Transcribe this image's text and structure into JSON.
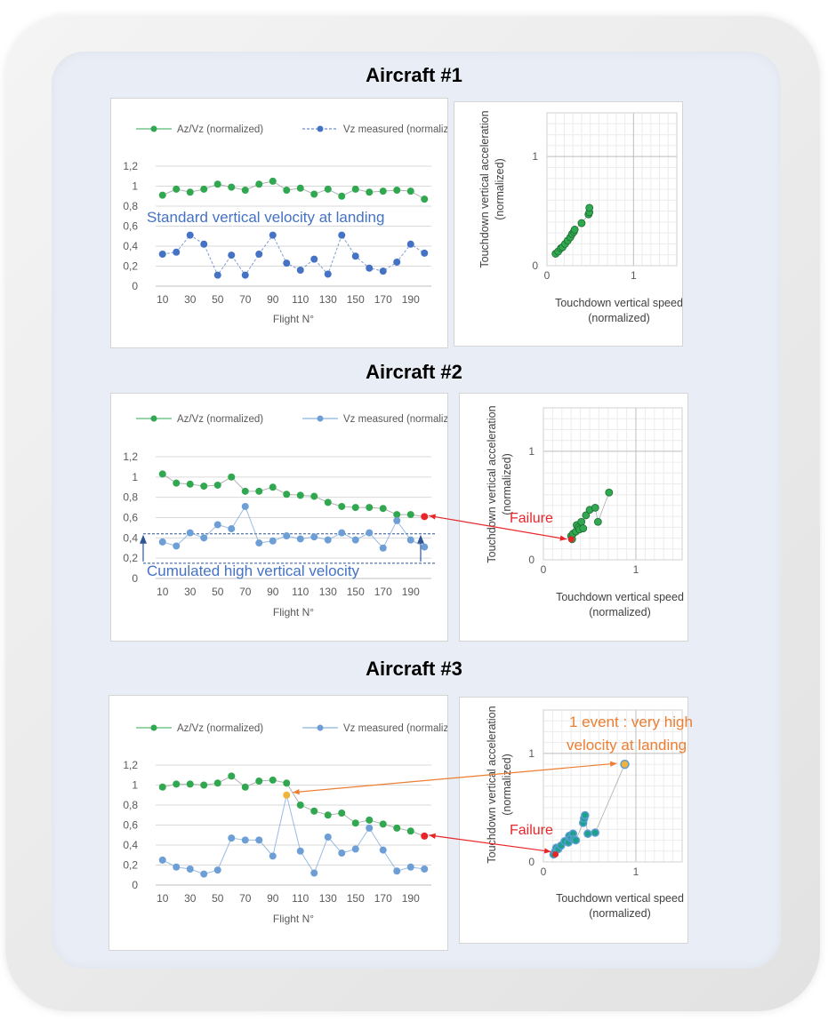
{
  "sections": [
    {
      "title": "Aircraft #1"
    },
    {
      "title": "Aircraft #2"
    },
    {
      "title": "Aircraft #3"
    }
  ],
  "colors": {
    "az_series": "#2fa84f",
    "vz_series_1": "#4472c4",
    "vz_series_2": "#6d9fd6",
    "failure_point": "#e8262a",
    "event_point": "#f0b43c",
    "failure_text": "#e8262a",
    "event_text": "#ed7d31",
    "annotation_text": "#4472c4"
  },
  "chart_data": [
    {
      "type": "line",
      "legend": [
        "Az/Vz (normalized)",
        "Vz measured (normalized)"
      ],
      "xlabel": "Flight N°",
      "x_ticks": [
        "10",
        "30",
        "50",
        "70",
        "90",
        "110",
        "130",
        "150",
        "170",
        "190"
      ],
      "y_ticks": [
        "0",
        "0,2",
        "0,4",
        "0,6",
        "0,8",
        "1",
        "1,2"
      ],
      "ylim": [
        0,
        1.2
      ],
      "x": [
        10,
        20,
        30,
        40,
        50,
        60,
        70,
        80,
        90,
        100,
        110,
        120,
        130,
        140,
        150,
        160,
        170,
        180,
        190,
        200
      ],
      "series": [
        {
          "name": "Az/Vz (normalized)",
          "values": [
            0.91,
            0.97,
            0.94,
            0.97,
            1.02,
            0.99,
            0.96,
            1.02,
            1.05,
            0.96,
            0.98,
            0.92,
            0.97,
            0.9,
            0.97,
            0.94,
            0.95,
            0.96,
            0.95,
            0.87
          ]
        },
        {
          "name": "Vz measured (normalized)",
          "values": [
            0.32,
            0.34,
            0.51,
            0.42,
            0.11,
            0.31,
            0.11,
            0.32,
            0.51,
            0.23,
            0.16,
            0.27,
            0.12,
            0.51,
            0.3,
            0.18,
            0.15,
            0.24,
            0.42,
            0.33
          ]
        }
      ],
      "annotation": "Standard vertical velocity at landing"
    },
    {
      "type": "scatter",
      "xlabel": "Touchdown vertical speed (normalized)",
      "ylabel": "Touchdown vertical acceleration (normalized)",
      "x_ticks": [
        "0",
        "1"
      ],
      "y_ticks": [
        "0",
        "1"
      ],
      "xlim": [
        0,
        1.5
      ],
      "ylim": [
        0,
        1.4
      ],
      "points": [
        [
          0.1,
          0.11
        ],
        [
          0.13,
          0.13
        ],
        [
          0.16,
          0.16
        ],
        [
          0.18,
          0.17
        ],
        [
          0.21,
          0.2
        ],
        [
          0.24,
          0.23
        ],
        [
          0.27,
          0.26
        ],
        [
          0.29,
          0.29
        ],
        [
          0.31,
          0.31
        ],
        [
          0.32,
          0.33
        ],
        [
          0.4,
          0.39
        ],
        [
          0.48,
          0.47
        ],
        [
          0.49,
          0.49
        ],
        [
          0.49,
          0.53
        ]
      ]
    },
    {
      "type": "line",
      "legend": [
        "Az/Vz (normalized)",
        "Vz measured (normalized)"
      ],
      "xlabel": "Flight N°",
      "x_ticks": [
        "10",
        "30",
        "50",
        "70",
        "90",
        "110",
        "130",
        "150",
        "170",
        "190"
      ],
      "y_ticks": [
        "0",
        "0,2",
        "0,4",
        "0,6",
        "0,8",
        "1",
        "1,2"
      ],
      "ylim": [
        0,
        1.2
      ],
      "x": [
        10,
        20,
        30,
        40,
        50,
        60,
        70,
        80,
        90,
        100,
        110,
        120,
        130,
        140,
        150,
        160,
        170,
        180,
        190,
        200
      ],
      "series": [
        {
          "name": "Az/Vz (normalized)",
          "values": [
            1.03,
            0.94,
            0.93,
            0.91,
            0.92,
            1.0,
            0.86,
            0.86,
            0.9,
            0.83,
            0.82,
            0.81,
            0.75,
            0.71,
            0.7,
            0.7,
            0.69,
            0.63,
            0.63,
            0.61
          ]
        },
        {
          "name": "Vz measured (normalized)",
          "values": [
            0.36,
            0.32,
            0.45,
            0.4,
            0.53,
            0.49,
            0.71,
            0.35,
            0.37,
            0.42,
            0.39,
            0.41,
            0.38,
            0.45,
            0.38,
            0.45,
            0.3,
            0.57,
            0.38,
            0.31
          ]
        }
      ],
      "reference_lines": [
        0.44,
        0.15
      ],
      "annotation": "Cumulated high vertical velocity"
    },
    {
      "type": "scatter",
      "xlabel": "Touchdown vertical speed (normalized)",
      "ylabel": "Touchdown vertical acceleration (normalized)",
      "x_ticks": [
        "0",
        "1"
      ],
      "y_ticks": [
        "0",
        "1"
      ],
      "xlim": [
        0,
        1.5
      ],
      "ylim": [
        0,
        1.4
      ],
      "points": [
        [
          0.3,
          0.22
        ],
        [
          0.31,
          0.19
        ],
        [
          0.32,
          0.24
        ],
        [
          0.35,
          0.26
        ],
        [
          0.36,
          0.32
        ],
        [
          0.38,
          0.3
        ],
        [
          0.39,
          0.28
        ],
        [
          0.41,
          0.35
        ],
        [
          0.43,
          0.29
        ],
        [
          0.46,
          0.41
        ],
        [
          0.5,
          0.46
        ],
        [
          0.56,
          0.48
        ],
        [
          0.59,
          0.35
        ],
        [
          0.71,
          0.62
        ]
      ],
      "failure_point": [
        0.3,
        0.19
      ],
      "annotation": "Failure"
    },
    {
      "type": "line",
      "legend": [
        "Az/Vz (normalized)",
        "Vz measured (normalized)"
      ],
      "xlabel": "Flight N°",
      "x_ticks": [
        "10",
        "30",
        "50",
        "70",
        "90",
        "110",
        "130",
        "150",
        "170",
        "190"
      ],
      "y_ticks": [
        "0",
        "0,2",
        "0,4",
        "0,6",
        "0,8",
        "1",
        "1,2"
      ],
      "ylim": [
        0,
        1.2
      ],
      "x": [
        10,
        20,
        30,
        40,
        50,
        60,
        70,
        80,
        90,
        100,
        110,
        120,
        130,
        140,
        150,
        160,
        170,
        180,
        190,
        200
      ],
      "series": [
        {
          "name": "Az/Vz (normalized)",
          "values": [
            0.98,
            1.01,
            1.01,
            1.0,
            1.02,
            1.09,
            0.98,
            1.04,
            1.05,
            1.02,
            0.8,
            0.74,
            0.7,
            0.72,
            0.62,
            0.65,
            0.61,
            0.57,
            0.54,
            0.49
          ]
        },
        {
          "name": "Vz measured (normalized)",
          "values": [
            0.25,
            0.18,
            0.16,
            0.11,
            0.15,
            0.47,
            0.45,
            0.45,
            0.29,
            0.9,
            0.34,
            0.12,
            0.48,
            0.32,
            0.36,
            0.57,
            0.35,
            0.14,
            0.18,
            0.16
          ]
        }
      ],
      "event_point": [
        100,
        0.9
      ]
    },
    {
      "type": "scatter",
      "xlabel": "Touchdown vertical speed (normalized)",
      "ylabel": "Touchdown vertical acceleration (normalized)",
      "x_ticks": [
        "0",
        "1"
      ],
      "y_ticks": [
        "0",
        "1"
      ],
      "xlim": [
        0,
        1.5
      ],
      "ylim": [
        0,
        1.4
      ],
      "points": [
        [
          0.11,
          0.07
        ],
        [
          0.13,
          0.1
        ],
        [
          0.14,
          0.13
        ],
        [
          0.16,
          0.12
        ],
        [
          0.19,
          0.15
        ],
        [
          0.23,
          0.19
        ],
        [
          0.27,
          0.18
        ],
        [
          0.28,
          0.24
        ],
        [
          0.3,
          0.22
        ],
        [
          0.32,
          0.26
        ],
        [
          0.33,
          0.21
        ],
        [
          0.35,
          0.2
        ],
        [
          0.43,
          0.36
        ],
        [
          0.44,
          0.4
        ],
        [
          0.45,
          0.43
        ],
        [
          0.48,
          0.26
        ],
        [
          0.56,
          0.27
        ],
        [
          0.88,
          0.9
        ]
      ],
      "event_point": [
        0.88,
        0.9
      ],
      "failure_point": [
        0.13,
        0.07
      ],
      "annotations": [
        "1 event : very high",
        "velocity at landing",
        "Failure"
      ]
    }
  ]
}
